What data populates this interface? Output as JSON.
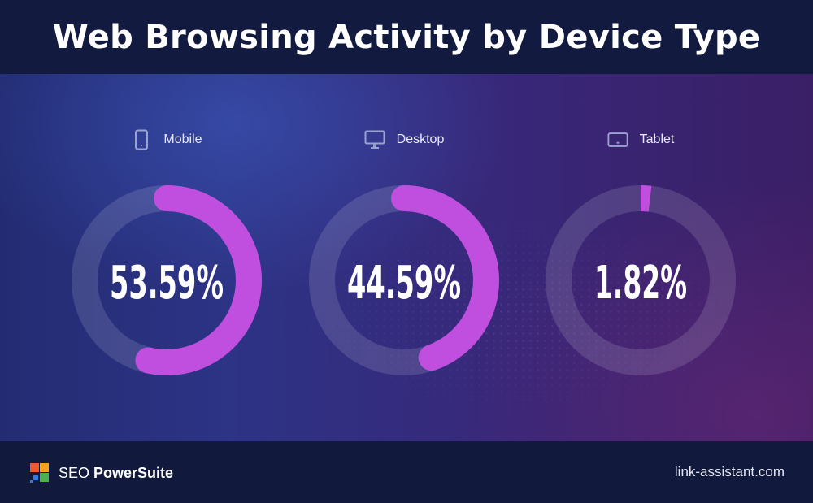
{
  "title": "Web Browsing Activity by Device Type",
  "chart_data": {
    "type": "pie",
    "title": "Web Browsing Activity by Device Type",
    "categories": [
      "Mobile",
      "Desktop",
      "Tablet"
    ],
    "values": [
      53.59,
      44.59,
      1.82
    ],
    "value_labels": [
      "53.59%",
      "44.59%",
      "1.82%"
    ],
    "style": "separate-donuts"
  },
  "devices": [
    {
      "label": "Mobile",
      "icon": "smartphone-icon",
      "value": 53.59,
      "display": "53.59%"
    },
    {
      "label": "Desktop",
      "icon": "monitor-icon",
      "value": 44.59,
      "display": "44.59%"
    },
    {
      "label": "Tablet",
      "icon": "tablet-icon",
      "value": 1.82,
      "display": "1.82%"
    }
  ],
  "colors": {
    "arc": "#c04fe0",
    "track": "rgba(255,255,255,0.13)",
    "header_bg": "#121a3f",
    "footer_bg": "#111a3d"
  },
  "footer": {
    "brand_prefix": "SEO",
    "brand_name": "PowerSuite",
    "website": "link-assistant.com"
  }
}
